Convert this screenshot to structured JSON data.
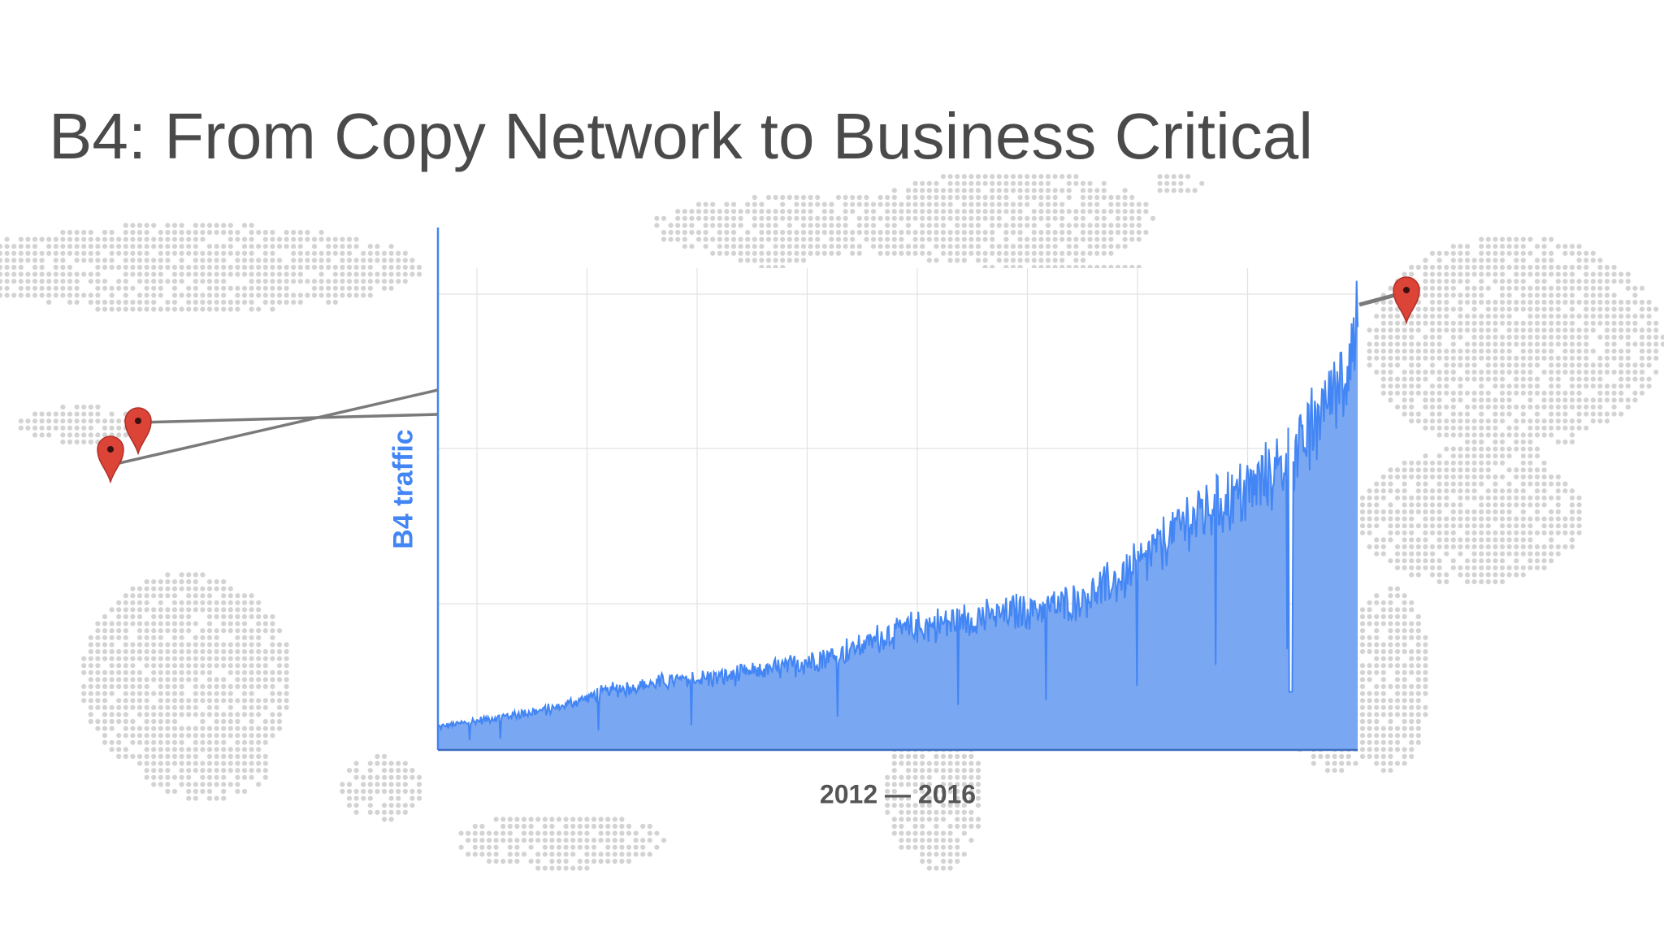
{
  "slide": {
    "title": "B4: From Copy Network to Business Critical"
  },
  "map": {
    "background": "world-map-dots",
    "pin_icon": "map-pin-icon",
    "pin_color": "#db4437",
    "link_color": "#7a7a7a"
  },
  "chart_data": {
    "type": "area",
    "title": "",
    "xlabel": "2012 — 2016",
    "ylabel": "B4 traffic",
    "x_range": [
      2012,
      2016
    ],
    "ylim": [
      0,
      100
    ],
    "grid": true,
    "legend": "none",
    "fill_color": "#7aa7f1",
    "line_color": "#4285f4",
    "series": [
      {
        "x": [
          2012.0,
          2012.25,
          2012.5,
          2012.75,
          2013.0,
          2013.25,
          2013.5,
          2013.75,
          2014.0,
          2014.25,
          2014.5,
          2014.75,
          2015.0,
          2015.25,
          2015.5,
          2015.75,
          2016.0
        ],
        "values": [
          5,
          7,
          9,
          13,
          15,
          16,
          18,
          21,
          26,
          28,
          30,
          32,
          38,
          50,
          56,
          65,
          90
        ]
      }
    ]
  }
}
